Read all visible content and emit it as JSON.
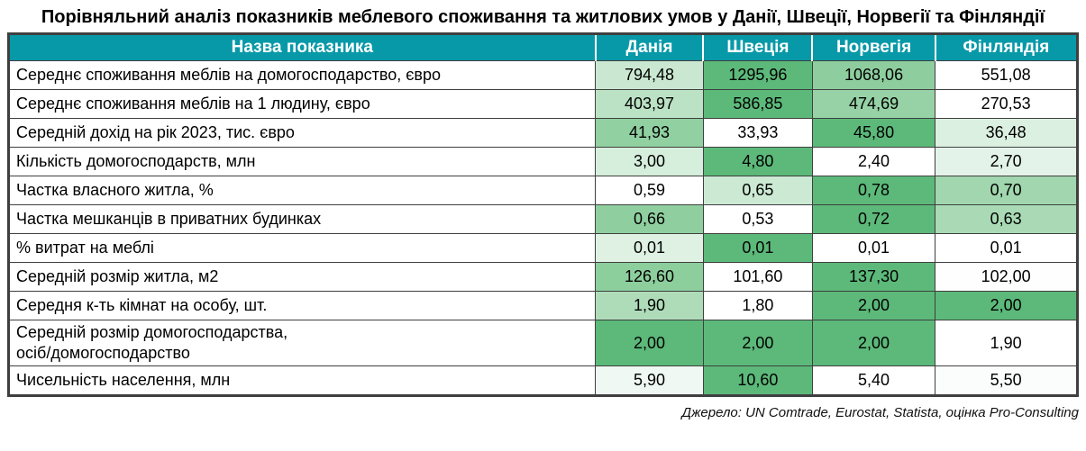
{
  "title": "Порівняльний аналіз показників меблевого споживання та житлових умов у Данії, Швеції, Норвегії та Фінляндії",
  "source_note": "Джерело: UN Comtrade, Eurostat, Statista, оцінка Pro-Consulting",
  "colors": {
    "header_bg": "#0899a8",
    "header_text": "#ffffff",
    "max_green": "#5cb97a",
    "border": "#3f3f3f"
  },
  "chart_data": {
    "type": "table",
    "title": "Порівняльний аналіз показників меблевого споживання та житлових умов у Данії, Швеції, Норвегії та Фінляндії",
    "columns": [
      "Назва показника",
      "Данія",
      "Швеція",
      "Норвегія",
      "Фінляндія"
    ],
    "rows": [
      {
        "label": "Середнє споживання меблів на домогосподарство, євро",
        "values": [
          "794,48",
          "1295,96",
          "1068,06",
          "551,08"
        ],
        "cell_colors": [
          "#CAE8D1",
          "#5CB97A",
          "#8ECE9E",
          "#FFFFFF"
        ]
      },
      {
        "label": "Середнє споживання меблів на 1 людину, євро",
        "values": [
          "403,97",
          "586,85",
          "474,69",
          "270,53"
        ],
        "cell_colors": [
          "#BBE2C4",
          "#5CB97A",
          "#96D2A5",
          "#FFFFFF"
        ]
      },
      {
        "label": "Середній дохід на рік 2023, тис. євро",
        "values": [
          "41,93",
          "33,93",
          "45,80",
          "36,48"
        ],
        "cell_colors": [
          "#91D0A1",
          "#FFFFFF",
          "#5CB97A",
          "#DCF0E1"
        ]
      },
      {
        "label": "Кількість домогосподарств, млн",
        "values": [
          "3,00",
          "4,80",
          "2,40",
          "2,70"
        ],
        "cell_colors": [
          "#D6EEDC",
          "#5CB97A",
          "#FFFFFF",
          "#E4F3E9"
        ]
      },
      {
        "label": "Частка власного житла, %",
        "values": [
          "0,59",
          "0,65",
          "0,78",
          "0,70"
        ],
        "cell_colors": [
          "#FFFFFF",
          "#CBE9D3",
          "#5CB97A",
          "#A1D6AE"
        ]
      },
      {
        "label": "Частка мешканців в приватних будинках",
        "values": [
          "0,66",
          "0,53",
          "0,72",
          "0,63"
        ],
        "cell_colors": [
          "#8FCF9F",
          "#FFFFFF",
          "#5CB97A",
          "#A9DAB5"
        ]
      },
      {
        "label": "% витрат на меблі",
        "values": [
          "0,01",
          "0,01",
          "0,01",
          "0,01"
        ],
        "cell_colors": [
          "#DEF1E3",
          "#5CB97A",
          "#FFFFFF",
          "#FFFFFF"
        ]
      },
      {
        "label": "Середній розмір житла, м2",
        "values": [
          "126,60",
          "101,60",
          "137,30",
          "102,00"
        ],
        "cell_colors": [
          "#8DCE9D",
          "#FFFFFF",
          "#5CB97A",
          "#FDFEFD"
        ]
      },
      {
        "label": "Середня к-ть кімнат на особу, шт.",
        "values": [
          "1,90",
          "1,80",
          "2,00",
          "2,00"
        ],
        "cell_colors": [
          "#AEDCB9",
          "#FFFFFF",
          "#5CB97A",
          "#5CB97A"
        ]
      },
      {
        "label": "Середній розмір домогосподарства,\nосіб/домогосподарство",
        "values": [
          "2,00",
          "2,00",
          "2,00",
          "1,90"
        ],
        "cell_colors": [
          "#5CB97A",
          "#5CB97A",
          "#5CB97A",
          "#FFFFFF"
        ]
      },
      {
        "label": "Чисельність населення, млн",
        "values": [
          "5,90",
          "10,60",
          "5,40",
          "5,50"
        ],
        "cell_colors": [
          "#EFF8F2",
          "#5CB97A",
          "#FFFFFF",
          "#FBFDFC"
        ]
      }
    ],
    "layout": {
      "legend": "none",
      "shading": "per-row green color scale, darker green = higher value in row",
      "decimal_separator": ","
    },
    "note": "Джерело: UN Comtrade, Eurostat, Statista, оцінка Pro-Consulting"
  }
}
